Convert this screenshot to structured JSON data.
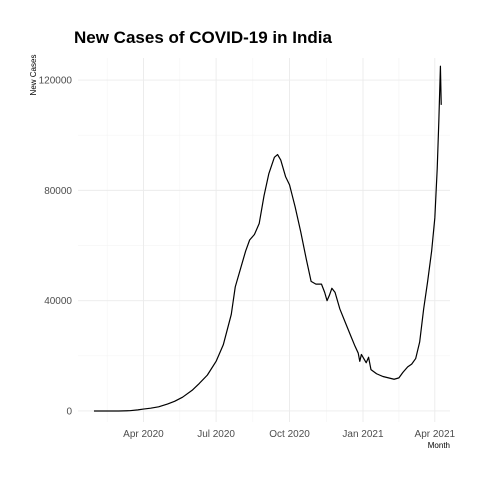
{
  "chart_data": {
    "type": "line",
    "title": "New Cases of COVID-19 in India",
    "xlabel": "Month",
    "ylabel": "New Cases",
    "grid": true,
    "legend": "none",
    "xlim": [
      "2020-01-10",
      "2021-04-20"
    ],
    "ylim": [
      -4000,
      128000
    ],
    "x_ticks": [
      {
        "date": "2020-04-01",
        "label": "Apr 2020"
      },
      {
        "date": "2020-07-01",
        "label": "Jul 2020"
      },
      {
        "date": "2020-10-01",
        "label": "Oct 2020"
      },
      {
        "date": "2021-01-01",
        "label": "Jan 2021"
      },
      {
        "date": "2021-04-01",
        "label": "Apr 2021"
      }
    ],
    "y_ticks": [
      {
        "value": 0,
        "label": "0"
      },
      {
        "value": 40000,
        "label": "40000"
      },
      {
        "value": 80000,
        "label": "80000"
      },
      {
        "value": 120000,
        "label": "120000"
      }
    ],
    "series": [
      {
        "color": "#000000",
        "points": [
          [
            "2020-01-30",
            0
          ],
          [
            "2020-02-15",
            0
          ],
          [
            "2020-03-01",
            0
          ],
          [
            "2020-03-15",
            100
          ],
          [
            "2020-03-25",
            400
          ],
          [
            "2020-04-01",
            700
          ],
          [
            "2020-04-10",
            1000
          ],
          [
            "2020-04-20",
            1500
          ],
          [
            "2020-05-01",
            2500
          ],
          [
            "2020-05-10",
            3500
          ],
          [
            "2020-05-20",
            5000
          ],
          [
            "2020-06-01",
            7500
          ],
          [
            "2020-06-10",
            10000
          ],
          [
            "2020-06-20",
            13000
          ],
          [
            "2020-07-01",
            18000
          ],
          [
            "2020-07-10",
            24000
          ],
          [
            "2020-07-20",
            35000
          ],
          [
            "2020-07-25",
            45000
          ],
          [
            "2020-08-01",
            52000
          ],
          [
            "2020-08-07",
            58000
          ],
          [
            "2020-08-12",
            62000
          ],
          [
            "2020-08-18",
            64000
          ],
          [
            "2020-08-24",
            68000
          ],
          [
            "2020-08-30",
            78000
          ],
          [
            "2020-09-05",
            86000
          ],
          [
            "2020-09-12",
            92000
          ],
          [
            "2020-09-16",
            93000
          ],
          [
            "2020-09-20",
            91000
          ],
          [
            "2020-09-26",
            85000
          ],
          [
            "2020-10-01",
            82000
          ],
          [
            "2020-10-08",
            74000
          ],
          [
            "2020-10-15",
            65000
          ],
          [
            "2020-10-22",
            55000
          ],
          [
            "2020-10-28",
            47000
          ],
          [
            "2020-11-03",
            46000
          ],
          [
            "2020-11-10",
            46000
          ],
          [
            "2020-11-14",
            43000
          ],
          [
            "2020-11-17",
            40000
          ],
          [
            "2020-11-20",
            42000
          ],
          [
            "2020-11-23",
            44500
          ],
          [
            "2020-11-27",
            43000
          ],
          [
            "2020-12-03",
            37000
          ],
          [
            "2020-12-10",
            32000
          ],
          [
            "2020-12-17",
            27000
          ],
          [
            "2020-12-22",
            23500
          ],
          [
            "2020-12-26",
            21000
          ],
          [
            "2020-12-28",
            18000
          ],
          [
            "2020-12-30",
            20500
          ],
          [
            "2021-01-02",
            19000
          ],
          [
            "2021-01-05",
            17500
          ],
          [
            "2021-01-08",
            19500
          ],
          [
            "2021-01-11",
            15000
          ],
          [
            "2021-01-18",
            13500
          ],
          [
            "2021-01-26",
            12500
          ],
          [
            "2021-02-02",
            12000
          ],
          [
            "2021-02-09",
            11500
          ],
          [
            "2021-02-15",
            12000
          ],
          [
            "2021-02-20",
            14000
          ],
          [
            "2021-02-26",
            16000
          ],
          [
            "2021-03-03",
            17000
          ],
          [
            "2021-03-08",
            19000
          ],
          [
            "2021-03-13",
            25000
          ],
          [
            "2021-03-18",
            37000
          ],
          [
            "2021-03-23",
            47000
          ],
          [
            "2021-03-28",
            58000
          ],
          [
            "2021-04-01",
            70000
          ],
          [
            "2021-04-04",
            88000
          ],
          [
            "2021-04-06",
            105000
          ],
          [
            "2021-04-08",
            125000
          ],
          [
            "2021-04-09",
            111000
          ]
        ]
      }
    ]
  }
}
